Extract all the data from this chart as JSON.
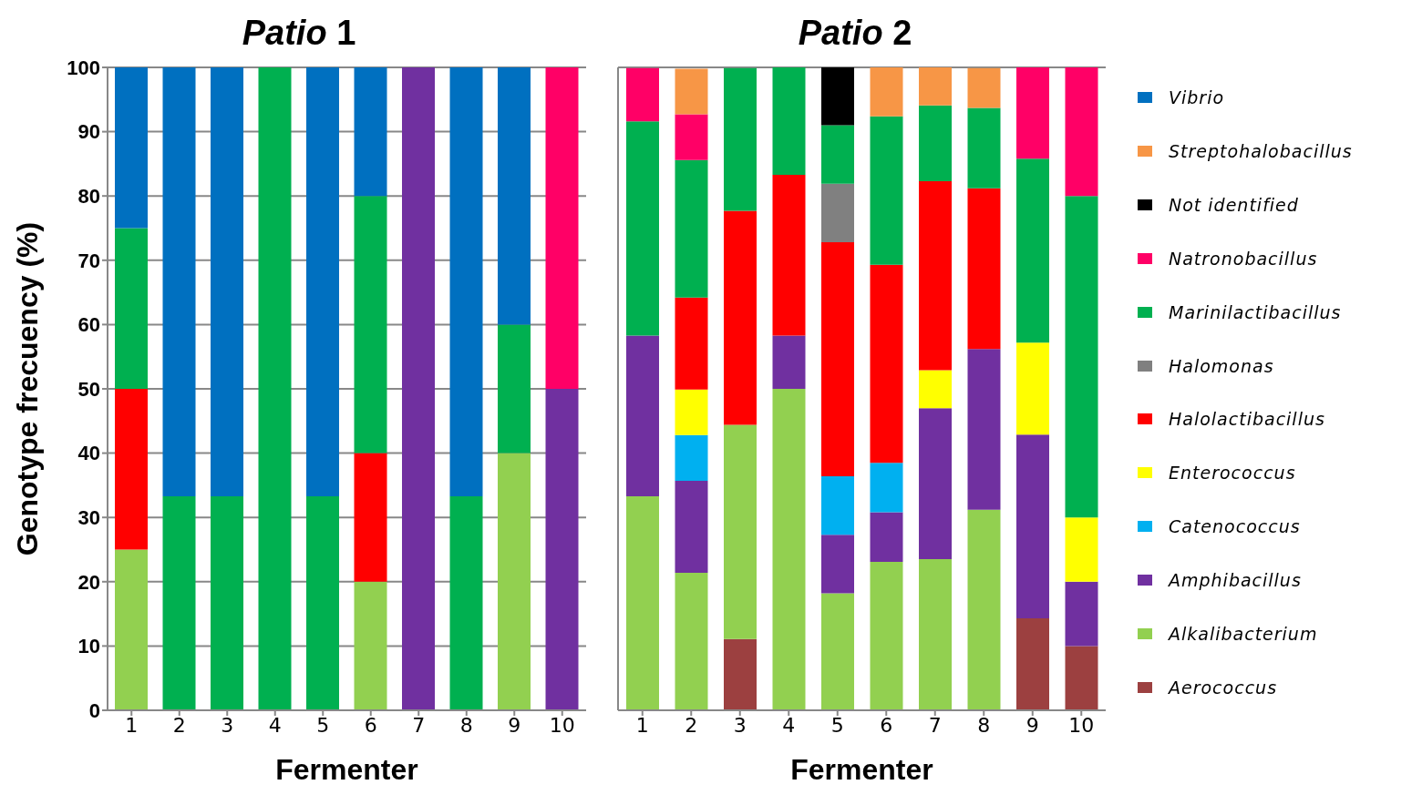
{
  "chart_data": [
    {
      "type": "bar",
      "title": "Patio 1",
      "xlabel": "Fermenter",
      "ylabel": "Genotype frecuency (%)",
      "stacked": true,
      "grid": "y",
      "legend": false,
      "categories": [
        "1",
        "2",
        "3",
        "4",
        "5",
        "6",
        "7",
        "8",
        "9",
        "10"
      ],
      "ylim": [
        0,
        100
      ],
      "yticks": [
        0,
        10,
        20,
        30,
        40,
        50,
        60,
        70,
        80,
        90,
        100
      ],
      "series": [
        {
          "color": "#92d050",
          "values": [
            25,
            0,
            0,
            0,
            0,
            20,
            0,
            0,
            40,
            0
          ]
        },
        {
          "color": "#7030a0",
          "values": [
            0,
            0,
            0,
            0,
            0,
            0,
            100,
            0,
            0,
            50
          ]
        },
        {
          "color": "#ff0000",
          "values": [
            25,
            0,
            0,
            0,
            0,
            20,
            0,
            0,
            0,
            0
          ]
        },
        {
          "color": "#00b050",
          "values": [
            25,
            33.3,
            33.3,
            100,
            33.3,
            40,
            0,
            33.3,
            20,
            0
          ]
        },
        {
          "color": "#ff0066",
          "values": [
            0,
            0,
            0,
            0,
            0,
            0,
            0,
            0,
            0,
            50
          ]
        },
        {
          "color": "#0070c0",
          "values": [
            25,
            66.7,
            66.7,
            0,
            66.7,
            20,
            0,
            66.7,
            40,
            0
          ]
        }
      ]
    },
    {
      "type": "bar",
      "title": "Patio 2",
      "xlabel": "Fermenter",
      "stacked": true,
      "grid": "y",
      "legend": "right",
      "tick_labels": "x",
      "categories": [
        "1",
        "2",
        "3",
        "4",
        "5",
        "6",
        "7",
        "8",
        "9",
        "10"
      ],
      "ylim": [
        0,
        100
      ],
      "yticks": [
        0,
        10,
        20,
        30,
        40,
        50,
        60,
        70,
        80,
        90,
        100
      ],
      "series": [
        {
          "name": "Aerococcus",
          "color": "#9c4040",
          "values": [
            0,
            0,
            11.1,
            0,
            0,
            0,
            0,
            0,
            14.3,
            10
          ]
        },
        {
          "name": "Alkalibacterium",
          "color": "#92d050",
          "values": [
            33.3,
            21.4,
            33.3,
            50,
            18.2,
            23.1,
            23.5,
            31.2,
            0,
            0
          ]
        },
        {
          "name": "Amphibacillus",
          "color": "#7030a0",
          "values": [
            25,
            14.3,
            0,
            8.3,
            9.1,
            7.7,
            23.5,
            25,
            28.6,
            10
          ]
        },
        {
          "name": "Catenococcus",
          "color": "#00b0f0",
          "values": [
            0,
            7.1,
            0,
            0,
            9.1,
            7.7,
            0,
            0,
            0,
            0
          ]
        },
        {
          "name": "Enterococcus",
          "color": "#ffff00",
          "values": [
            0,
            7.1,
            0,
            0,
            0,
            0,
            5.9,
            0,
            14.3,
            10
          ]
        },
        {
          "name": "Halolactibacillus",
          "color": "#ff0000",
          "values": [
            0,
            14.3,
            33.3,
            25,
            36.4,
            30.8,
            29.4,
            25,
            0,
            0
          ]
        },
        {
          "name": "Halomonas",
          "color": "#808080",
          "values": [
            0,
            0,
            0,
            0,
            9.1,
            0,
            0,
            0,
            0,
            0
          ]
        },
        {
          "name": "Marinilactibacillus",
          "color": "#00b050",
          "values": [
            33.3,
            21.4,
            22.2,
            16.7,
            9.1,
            23.1,
            11.8,
            12.5,
            28.6,
            50
          ]
        },
        {
          "name": "Natronobacillus",
          "color": "#ff0066",
          "values": [
            8.3,
            7.1,
            0,
            0,
            0,
            0,
            0,
            0,
            14.3,
            20
          ]
        },
        {
          "name": "Not identified",
          "color": "#000000",
          "values": [
            0,
            0,
            0,
            0,
            9.1,
            0,
            0,
            0,
            0,
            0
          ]
        },
        {
          "name": "Streptohalobacillus",
          "color": "#f79646",
          "values": [
            0,
            7.1,
            0,
            0,
            0,
            7.7,
            5.9,
            6.2,
            0,
            0
          ]
        },
        {
          "name": "Vibrio",
          "color": "#0070c0",
          "values": [
            0,
            0,
            0,
            0,
            0,
            0,
            0,
            0,
            0,
            0
          ]
        }
      ]
    }
  ]
}
